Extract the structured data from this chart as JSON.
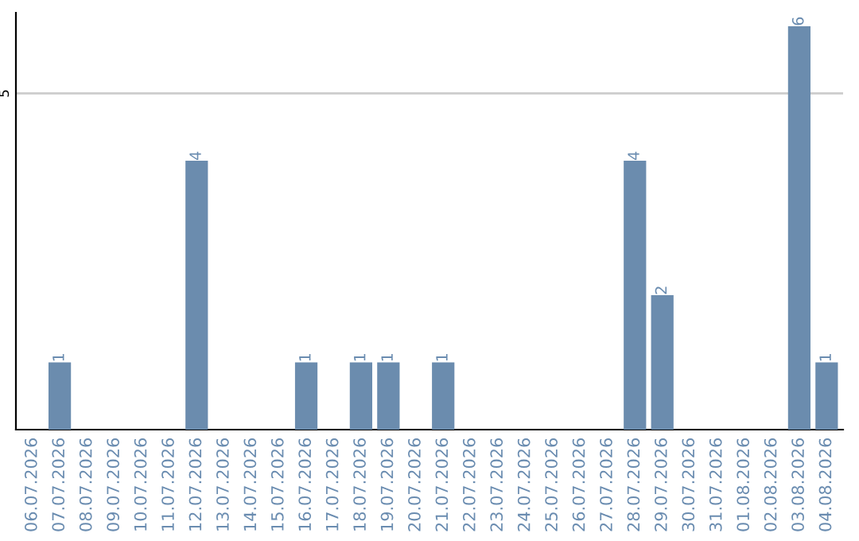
{
  "chart_data": {
    "type": "bar",
    "categories": [
      "06.07.2026",
      "07.07.2026",
      "08.07.2026",
      "09.07.2026",
      "10.07.2026",
      "11.07.2026",
      "12.07.2026",
      "13.07.2026",
      "14.07.2026",
      "15.07.2026",
      "16.07.2026",
      "17.07.2026",
      "18.07.2026",
      "19.07.2026",
      "20.07.2026",
      "21.07.2026",
      "22.07.2026",
      "23.07.2026",
      "24.07.2026",
      "25.07.2026",
      "26.07.2026",
      "27.07.2026",
      "28.07.2026",
      "29.07.2026",
      "30.07.2026",
      "31.07.2026",
      "01.08.2026",
      "02.08.2026",
      "03.08.2026",
      "04.08.2026"
    ],
    "values": [
      0,
      1,
      0,
      0,
      0,
      0,
      4,
      0,
      0,
      0,
      1,
      0,
      1,
      1,
      0,
      1,
      0,
      0,
      0,
      0,
      0,
      0,
      4,
      2,
      0,
      0,
      0,
      0,
      6,
      1
    ],
    "value_labels": [
      null,
      "1",
      null,
      null,
      null,
      null,
      "4",
      null,
      null,
      null,
      "1",
      null,
      "1",
      "1",
      null,
      "1",
      null,
      null,
      null,
      null,
      null,
      null,
      "4",
      "2",
      null,
      null,
      null,
      null,
      "6",
      "1"
    ],
    "color": "#6b8cae",
    "ylim": [
      0,
      6.2
    ],
    "yticks": [
      5
    ],
    "grid": "y",
    "legend": false
  }
}
